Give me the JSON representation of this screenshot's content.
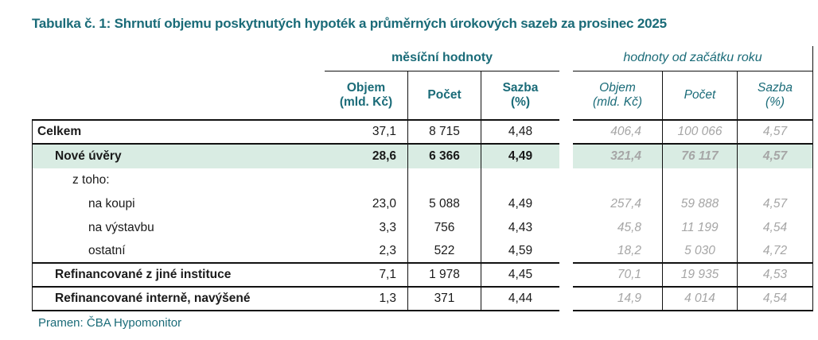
{
  "title": "Tabulka č. 1: Shrnutí objemu poskytnutých hypoték a průměrných úrokových sazeb za prosinec 2025",
  "colors": {
    "accent_teal": "#1A6B78",
    "ytd_gray": "#A6A6A6",
    "highlight_row": "#D9ECE3",
    "grid_line": "#111111"
  },
  "groups": {
    "monthly": {
      "label": "měsíční hodnoty",
      "col_objem_1": "Objem",
      "col_objem_2": "(mld. Kč)",
      "col_pocet": "Počet",
      "col_sazba_1": "Sazba",
      "col_sazba_2": "(%)"
    },
    "ytd": {
      "label": "hodnoty od začátku roku",
      "col_objem_1": "Objem",
      "col_objem_2": "(mld. Kč)",
      "col_pocet": "Počet",
      "col_sazba_1": "Sazba",
      "col_sazba_2": "(%)"
    }
  },
  "rows": [
    {
      "label": "Celkem",
      "monthly": {
        "objem": "37,1",
        "pocet": "8 715",
        "sazba": "4,48"
      },
      "ytd": {
        "objem": "406,4",
        "pocet": "100 066",
        "sazba": "4,57"
      }
    },
    {
      "label": "Nové úvěry",
      "monthly": {
        "objem": "28,6",
        "pocet": "6 366",
        "sazba": "4,49"
      },
      "ytd": {
        "objem": "321,4",
        "pocet": "76 117",
        "sazba": "4,57"
      }
    },
    {
      "label": "z toho:",
      "monthly": {
        "objem": "",
        "pocet": "",
        "sazba": ""
      },
      "ytd": {
        "objem": "",
        "pocet": "",
        "sazba": ""
      }
    },
    {
      "label": "na koupi",
      "monthly": {
        "objem": "23,0",
        "pocet": "5 088",
        "sazba": "4,49"
      },
      "ytd": {
        "objem": "257,4",
        "pocet": "59 888",
        "sazba": "4,57"
      }
    },
    {
      "label": "na výstavbu",
      "monthly": {
        "objem": "3,3",
        "pocet": "756",
        "sazba": "4,43"
      },
      "ytd": {
        "objem": "45,8",
        "pocet": "11 199",
        "sazba": "4,54"
      }
    },
    {
      "label": "ostatní",
      "monthly": {
        "objem": "2,3",
        "pocet": "522",
        "sazba": "4,59"
      },
      "ytd": {
        "objem": "18,2",
        "pocet": "5 030",
        "sazba": "4,72"
      }
    },
    {
      "label": "Refinancované z jiné instituce",
      "monthly": {
        "objem": "7,1",
        "pocet": "1 978",
        "sazba": "4,45"
      },
      "ytd": {
        "objem": "70,1",
        "pocet": "19 935",
        "sazba": "4,53"
      }
    },
    {
      "label": "Refinancované interně, navýšené",
      "monthly": {
        "objem": "1,3",
        "pocet": "371",
        "sazba": "4,44"
      },
      "ytd": {
        "objem": "14,9",
        "pocet": "4 014",
        "sazba": "4,54"
      }
    }
  ],
  "source": "Pramen: ČBA Hypomonitor"
}
